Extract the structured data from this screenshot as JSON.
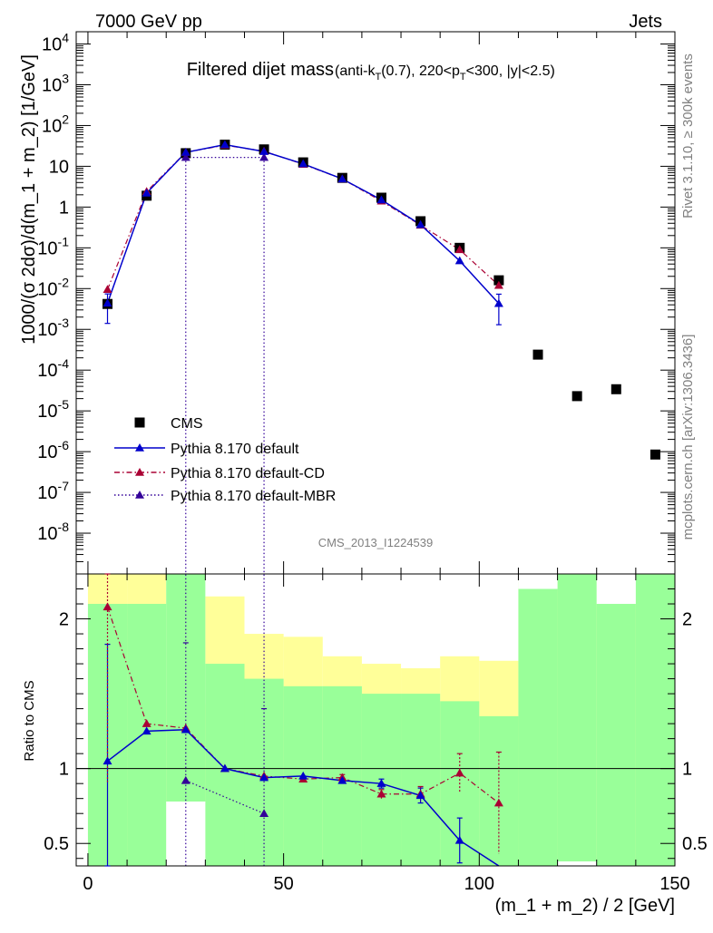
{
  "header": {
    "left": "7000 GeV pp",
    "right": "Jets"
  },
  "side_labels": {
    "rivet": "Rivet 3.1.10, ≥ 300k events",
    "mcplots": "mcplots.cern.ch [arXiv:1306.3436]"
  },
  "colors": {
    "cms": "#000000",
    "default": "#0000cc",
    "cd": "#aa0033",
    "mbr": "#330099",
    "band_inner": "#99ff99",
    "band_outer": "#ffff99"
  },
  "chart_data": {
    "type": "line",
    "title": "Filtered dijet mass",
    "subtitle": "(anti-kT(0.7), 220<pT<300, |y|<2.5)",
    "subtitle_parts": {
      "a": "(anti-k",
      "a_sub": "T",
      "b": "(0.7), 220<p",
      "b_sub": "T",
      "c": "<300, |y|<2.5)"
    },
    "analysis_label": "CMS_2013_I1224539",
    "ylabel": "1000/(σ 2dσ)/d(m_1 + m_2) [1/GeV]",
    "xlabel": "(m_1 + m_2) / 2 [GeV]",
    "ratio_ylabel": "Ratio to CMS",
    "xlim": [
      -3,
      150
    ],
    "ylim_log": [
      1e-09,
      20000
    ],
    "ratio_ylim": [
      0.35,
      2.3
    ],
    "x_ticks": [
      0,
      50,
      100,
      150
    ],
    "x_tick_labels": [
      "0",
      "50",
      "100",
      "150"
    ],
    "y_ticks": [
      {
        "exp": 4,
        "label_base": "10",
        "label_exp": "4"
      },
      {
        "exp": 3,
        "label_base": "10",
        "label_exp": "3"
      },
      {
        "exp": 2,
        "label_base": "10",
        "label_exp": "2"
      },
      {
        "exp": 1,
        "label_base": "10",
        "label_exp": ""
      },
      {
        "exp": 0,
        "label_base": "1",
        "label_exp": ""
      },
      {
        "exp": -1,
        "label_base": "10",
        "label_exp": "-1"
      },
      {
        "exp": -2,
        "label_base": "10",
        "label_exp": "-2"
      },
      {
        "exp": -3,
        "label_base": "10",
        "label_exp": "-3"
      },
      {
        "exp": -4,
        "label_base": "10",
        "label_exp": "-4"
      },
      {
        "exp": -5,
        "label_base": "10",
        "label_exp": "-5"
      },
      {
        "exp": -6,
        "label_base": "10",
        "label_exp": "-6"
      },
      {
        "exp": -7,
        "label_base": "10",
        "label_exp": "-7"
      },
      {
        "exp": -8,
        "label_base": "10",
        "label_exp": "-8"
      }
    ],
    "ratio_ticks": [
      {
        "value": 0.5,
        "label": "0.5"
      },
      {
        "value": 1,
        "label": "1"
      },
      {
        "value": 2,
        "label": "2"
      }
    ],
    "legend": {
      "position": "center-left",
      "entries": [
        "CMS",
        "Pythia 8.170 default",
        "Pythia 8.170 default-CD",
        "Pythia 8.170 default-MBR"
      ]
    },
    "bins": [
      {
        "low": 0,
        "high": 10
      },
      {
        "low": 10,
        "high": 20
      },
      {
        "low": 20,
        "high": 30
      },
      {
        "low": 30,
        "high": 40
      },
      {
        "low": 40,
        "high": 50
      },
      {
        "low": 50,
        "high": 60
      },
      {
        "low": 60,
        "high": 70
      },
      {
        "low": 70,
        "high": 80
      },
      {
        "low": 80,
        "high": 90
      },
      {
        "low": 90,
        "high": 100
      },
      {
        "low": 100,
        "high": 110
      },
      {
        "low": 110,
        "high": 120
      },
      {
        "low": 120,
        "high": 130
      },
      {
        "low": 130,
        "high": 140
      },
      {
        "low": 140,
        "high": 150
      }
    ],
    "band_inner": [
      [
        0.35,
        2.1
      ],
      [
        0.35,
        2.1
      ],
      [
        0.35,
        2.3
      ],
      [
        0.35,
        1.7
      ],
      [
        0.35,
        1.6
      ],
      [
        0.35,
        1.55
      ],
      [
        0.35,
        1.55
      ],
      [
        0.35,
        1.5
      ],
      [
        0.35,
        1.5
      ],
      [
        0.35,
        1.45
      ],
      [
        0.35,
        1.35
      ],
      [
        0.35,
        2.3
      ],
      [
        0.35,
        2.3
      ],
      [
        0.35,
        2.3
      ],
      [
        0.35,
        2.3
      ]
    ],
    "band_outer": [
      [
        0.35,
        2.3
      ],
      [
        0.35,
        2.3
      ],
      [
        0.78,
        1.43
      ],
      [
        0.35,
        2.15
      ],
      [
        0.35,
        1.9
      ],
      [
        0.35,
        1.88
      ],
      [
        0.35,
        1.75
      ],
      [
        0.35,
        1.7
      ],
      [
        0.35,
        1.67
      ],
      [
        0.35,
        1.75
      ],
      [
        0.35,
        1.72
      ],
      [
        0.35,
        2.3
      ],
      [
        0.38,
        2.3
      ],
      [
        0.39,
        2.1
      ],
      [
        0.35,
        2.3
      ]
    ],
    "band_white": [
      [
        2.45,
        3.0
      ],
      [
        2.45,
        3.0
      ],
      [
        0.35,
        0.78
      ],
      [
        0.35,
        0.35
      ],
      [
        0.35,
        0.35
      ],
      [
        0.35,
        0.35
      ],
      [
        0.35,
        0.35
      ],
      [
        0.35,
        0.35
      ],
      [
        0.35,
        0.35
      ],
      [
        0.35,
        0.35
      ],
      [
        0.35,
        0.35
      ],
      [
        2.2,
        2.45
      ],
      [
        0.35,
        0.38
      ],
      [
        2.1,
        2.45
      ],
      [
        0.35,
        0.35
      ]
    ],
    "series": [
      {
        "name": "CMS",
        "marker": "square",
        "x": [
          5,
          15,
          25,
          35,
          45,
          55,
          65,
          75,
          85,
          95,
          105,
          115,
          125,
          135,
          145
        ],
        "y": [
          0.0042,
          1.9,
          21,
          34,
          26,
          12.5,
          5.2,
          1.7,
          0.45,
          0.1,
          0.016,
          0.00024,
          2.3e-05,
          3.4e-05,
          8.5e-07
        ]
      },
      {
        "name": "Pythia 8.170 default",
        "marker": "triangle",
        "line": "solid",
        "x": [
          5,
          15,
          25,
          35,
          45,
          55,
          65,
          75,
          85,
          95,
          105
        ],
        "y": [
          0.0044,
          2.2,
          22,
          34,
          23,
          11.5,
          4.9,
          1.5,
          0.37,
          0.048,
          0.0043
        ],
        "yerr_low": [
          0.003,
          0,
          0,
          0,
          0,
          0,
          0,
          0,
          0,
          0,
          0.003
        ],
        "yerr_high": [
          0.003,
          0,
          0,
          0,
          0,
          0,
          0,
          0,
          0,
          0,
          0.003
        ],
        "ratio": [
          1.05,
          1.25,
          1.26,
          1.0,
          0.94,
          0.95,
          0.92,
          0.9,
          0.82,
          0.52,
          0.3
        ],
        "ratio_err": [
          0.78,
          0,
          0,
          0,
          0,
          0,
          0,
          0.03,
          0.05,
          0.15,
          0.0
        ]
      },
      {
        "name": "Pythia 8.170 default-CD",
        "marker": "triangle",
        "line": "dashdot",
        "x": [
          5,
          15,
          25,
          35,
          45,
          55,
          65,
          75,
          85,
          95,
          105
        ],
        "y": [
          0.0095,
          2.4,
          22,
          33,
          23.5,
          11.2,
          4.9,
          1.4,
          0.36,
          0.09,
          0.012
        ],
        "ratio": [
          2.08,
          1.3,
          1.27,
          1.0,
          0.95,
          0.93,
          0.94,
          0.83,
          0.83,
          0.97,
          0.77
        ],
        "ratio_err": [
          1.17,
          0,
          0,
          0,
          0,
          0,
          0.02,
          0.03,
          0.05,
          0.13,
          0.34
        ]
      },
      {
        "name": "Pythia 8.170 default-MBR",
        "marker": "triangle",
        "line": "dotted",
        "x": [
          25,
          45
        ],
        "y": [
          16.5,
          16.5
        ],
        "ratio": [
          0.92,
          0.7
        ],
        "ratio_err": [
          0.92,
          0.7
        ]
      }
    ]
  }
}
